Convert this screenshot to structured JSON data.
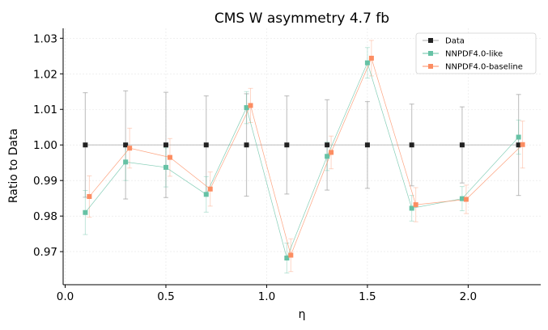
{
  "chart_data": {
    "type": "scatter",
    "title": "CMS W asymmetry 4.7 fb",
    "xlabel": "η",
    "ylabel": "Ratio to Data",
    "xlim": [
      -0.01,
      2.36
    ],
    "ylim": [
      0.9607,
      1.0328
    ],
    "xticks": [
      0.0,
      0.5,
      1.0,
      1.5,
      2.0
    ],
    "xtick_labels": [
      "0.0",
      "0.5",
      "1.0",
      "1.5",
      "2.0"
    ],
    "yticks": [
      0.97,
      0.98,
      0.99,
      1.0,
      1.01,
      1.02,
      1.03
    ],
    "ytick_labels": [
      "0.97",
      "0.98",
      "0.99",
      "1.00",
      "1.01",
      "1.02",
      "1.03"
    ],
    "grid": true,
    "legend_position": "top-right",
    "series": [
      {
        "name": "Data",
        "color": "#222222",
        "x": [
          0.1,
          0.3,
          0.5,
          0.7,
          0.9,
          1.1,
          1.3,
          1.5,
          1.72,
          1.97,
          2.25
        ],
        "values": [
          1.0,
          1.0,
          1.0,
          1.0,
          1.0,
          1.0,
          1.0,
          1.0,
          1.0,
          1.0,
          1.0
        ],
        "errors": [
          0.0147,
          0.0152,
          0.0148,
          0.0138,
          0.0144,
          0.0138,
          0.0127,
          0.0122,
          0.0115,
          0.0107,
          0.0142
        ]
      },
      {
        "name": "NNPDF4.0-like",
        "color": "#66c2a5",
        "x": [
          0.1,
          0.3,
          0.5,
          0.7,
          0.9,
          1.1,
          1.3,
          1.5,
          1.72,
          1.97,
          2.25
        ],
        "values": [
          0.981,
          0.9952,
          0.9937,
          0.9861,
          1.0105,
          0.9682,
          0.9968,
          1.0231,
          0.9822,
          0.9849,
          1.0022
        ],
        "errors": [
          0.0062,
          0.0052,
          0.0055,
          0.005,
          0.0045,
          0.0042,
          0.004,
          0.0043,
          0.0036,
          0.0034,
          0.0048
        ]
      },
      {
        "name": "NNPDF4.0-baseline",
        "color": "#fc8d62",
        "x": [
          0.12,
          0.32,
          0.52,
          0.72,
          0.92,
          1.12,
          1.32,
          1.52,
          1.74,
          1.99,
          2.27
        ],
        "values": [
          0.9855,
          0.9991,
          0.9965,
          0.9876,
          1.0111,
          0.969,
          0.9979,
          1.0244,
          0.9832,
          0.9847,
          1.0001
        ],
        "errors": [
          0.0058,
          0.0056,
          0.0053,
          0.0048,
          0.0048,
          0.0046,
          0.0046,
          0.005,
          0.0048,
          0.004,
          0.0066
        ]
      }
    ]
  }
}
